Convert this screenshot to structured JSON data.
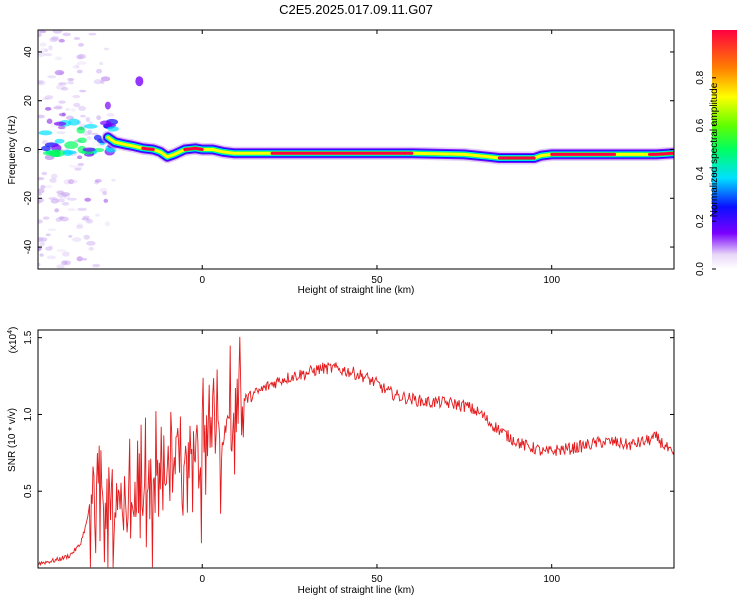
{
  "title": "C2E5.2025.017.09.11.G07",
  "chart_data": [
    {
      "type": "heatmap",
      "xlabel": "Height of straight line (km)",
      "ylabel": "Frequency (Hz)",
      "xlim": [
        -47,
        135
      ],
      "ylim": [
        -49,
        49
      ],
      "xticks": [
        0,
        50,
        100
      ],
      "yticks": [
        -40,
        -20,
        0,
        20,
        40
      ],
      "colorbar": {
        "label": "Normalized spectral amplitude",
        "range": [
          0,
          1
        ],
        "ticks": [
          0.0,
          0.2,
          0.4,
          0.6,
          0.8
        ]
      },
      "ridge": {
        "x": [
          -27,
          -25,
          -22,
          -20,
          -17,
          -14,
          -12,
          -10,
          -8,
          -5,
          -2,
          0,
          3,
          6,
          9,
          12,
          20,
          40,
          60,
          75,
          82,
          85,
          90,
          95,
          97,
          100,
          110,
          120,
          130,
          135
        ],
        "freq": [
          5,
          3,
          2,
          1.5,
          0.5,
          0,
          -1,
          -3,
          -2,
          0,
          0.5,
          0,
          0,
          -1,
          -1.5,
          -1.5,
          -1.5,
          -1.5,
          -1.5,
          -2,
          -3,
          -3.5,
          -3.5,
          -3.5,
          -2.5,
          -2,
          -2,
          -2,
          -2,
          -1.5
        ]
      },
      "scatter_region": {
        "x_range": [
          -47,
          -23
        ],
        "freq_range": [
          -49,
          49
        ]
      }
    },
    {
      "type": "line",
      "xlabel": "Height of straight line (km)",
      "ylabel": "SNR (10 * v/v)",
      "exponent_label": "(x10",
      "exponent": "4",
      "xlim": [
        -47,
        135
      ],
      "ylim": [
        0,
        1.55
      ],
      "xticks": [
        0,
        50,
        100
      ],
      "yticks": [
        0.5,
        1.0,
        1.5
      ],
      "ytick_labels": [
        "0.5",
        "1.0",
        "1.5"
      ],
      "series": [
        {
          "color": "#e41a1c",
          "x": [
            -47,
            -42,
            -38,
            -35,
            -33,
            -31,
            -29,
            -27,
            -25,
            -23,
            -21,
            -19,
            -17,
            -15,
            -13,
            -11,
            -9,
            -7,
            -5,
            -3,
            -1,
            1,
            3,
            5,
            7,
            9,
            11,
            14,
            17,
            20,
            23,
            26,
            30,
            34,
            38,
            42,
            46,
            50,
            53,
            56,
            60,
            64,
            68,
            72,
            76,
            80,
            82,
            85,
            88,
            92,
            95,
            98,
            102,
            106,
            110,
            114,
            118,
            122,
            126,
            130,
            133,
            135
          ],
          "y": [
            0.03,
            0.05,
            0.08,
            0.15,
            0.3,
            0.6,
            0.55,
            0.5,
            0.45,
            0.52,
            0.48,
            0.5,
            0.55,
            0.58,
            0.62,
            0.65,
            0.7,
            0.75,
            0.8,
            0.85,
            0.88,
            0.92,
            0.95,
            0.98,
            1.02,
            1.05,
            1.08,
            1.12,
            1.16,
            1.2,
            1.23,
            1.25,
            1.27,
            1.3,
            1.3,
            1.28,
            1.25,
            1.2,
            1.15,
            1.12,
            1.1,
            1.08,
            1.08,
            1.07,
            1.05,
            1.0,
            0.95,
            0.9,
            0.85,
            0.8,
            0.78,
            0.75,
            0.77,
            0.78,
            0.8,
            0.82,
            0.82,
            0.8,
            0.82,
            0.85,
            0.78,
            0.72
          ]
        }
      ]
    }
  ]
}
